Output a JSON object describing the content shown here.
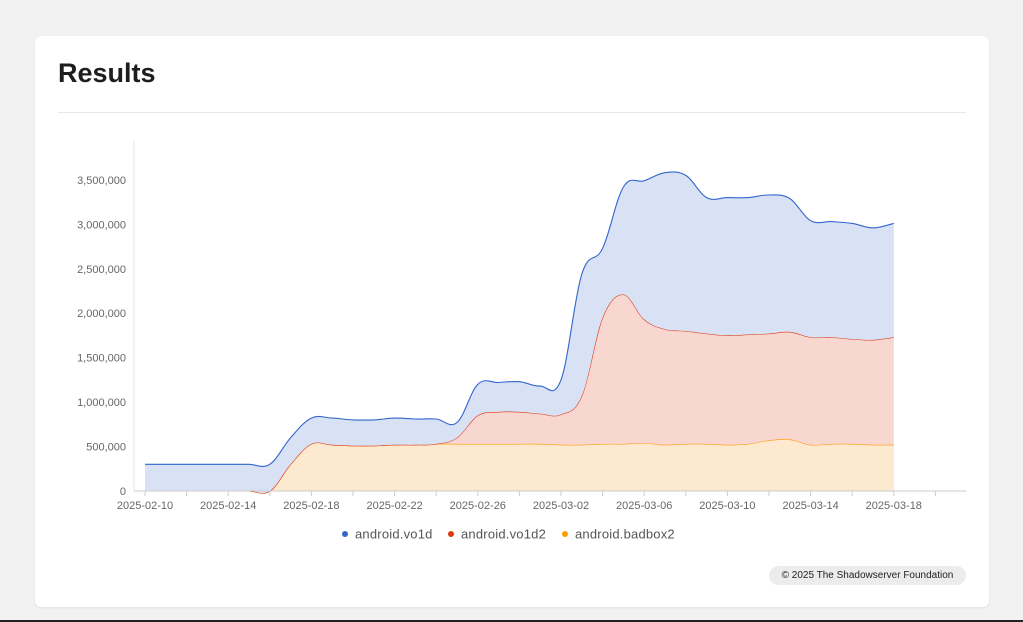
{
  "page": {
    "title": "Results",
    "credit": "© 2025 The Shadowserver Foundation"
  },
  "chart_data": {
    "type": "area",
    "title": "",
    "xlabel": "",
    "ylabel": "",
    "ylim": [
      0,
      3900000
    ],
    "yticks": [
      0,
      500000,
      1000000,
      1500000,
      2000000,
      2500000,
      3000000,
      3500000
    ],
    "ytick_labels": [
      "0",
      "500,000",
      "1,000,000",
      "1,500,000",
      "2,000,000",
      "2,500,000",
      "3,000,000",
      "3,500,000"
    ],
    "x": [
      "2025-02-10",
      "2025-02-11",
      "2025-02-12",
      "2025-02-13",
      "2025-02-14",
      "2025-02-15",
      "2025-02-16",
      "2025-02-17",
      "2025-02-18",
      "2025-02-19",
      "2025-02-20",
      "2025-02-21",
      "2025-02-22",
      "2025-02-23",
      "2025-02-24",
      "2025-02-25",
      "2025-02-26",
      "2025-02-27",
      "2025-02-28",
      "2025-03-01",
      "2025-03-02",
      "2025-03-03",
      "2025-03-04",
      "2025-03-05",
      "2025-03-06",
      "2025-03-07",
      "2025-03-08",
      "2025-03-09",
      "2025-03-10",
      "2025-03-11",
      "2025-03-12",
      "2025-03-13",
      "2025-03-14",
      "2025-03-15",
      "2025-03-16",
      "2025-03-17",
      "2025-03-18"
    ],
    "xtick_labels": [
      "2025-02-10",
      "2025-02-14",
      "2025-02-18",
      "2025-02-22",
      "2025-02-26",
      "2025-03-02",
      "2025-03-06",
      "2025-03-10",
      "2025-03-14",
      "2025-03-18"
    ],
    "xtick_label_indices": [
      0,
      4,
      8,
      12,
      16,
      20,
      24,
      28,
      32,
      36
    ],
    "x_axis_days": 40,
    "stacked": true,
    "grid": false,
    "legend_position": "bottom",
    "series": [
      {
        "name": "android.badbox2",
        "color": "#ff9900",
        "fill": "#fde8d0",
        "values": [
          0,
          0,
          0,
          0,
          0,
          0,
          0,
          300000,
          530000,
          520000,
          510000,
          510000,
          520000,
          520000,
          530000,
          530000,
          530000,
          530000,
          530000,
          530000,
          520000,
          520000,
          530000,
          530000,
          540000,
          520000,
          530000,
          530000,
          520000,
          530000,
          570000,
          580000,
          520000,
          530000,
          530000,
          520000,
          520000
        ]
      },
      {
        "name": "android.vo1d2",
        "color": "#dc3912",
        "fill": "#f8d7d0",
        "values": [
          0,
          0,
          0,
          0,
          0,
          0,
          0,
          0,
          0,
          0,
          0,
          0,
          0,
          0,
          0,
          70000,
          320000,
          360000,
          360000,
          340000,
          340000,
          550000,
          1420000,
          1680000,
          1390000,
          1300000,
          1270000,
          1240000,
          1230000,
          1230000,
          1200000,
          1210000,
          1210000,
          1200000,
          1180000,
          1180000,
          1210000
        ]
      },
      {
        "name": "android.vo1d",
        "color": "#3366cc",
        "fill": "#d9e1f5",
        "values": [
          300000,
          300000,
          300000,
          300000,
          300000,
          300000,
          300000,
          300000,
          290000,
          300000,
          290000,
          290000,
          300000,
          290000,
          280000,
          170000,
          350000,
          330000,
          340000,
          310000,
          390000,
          1370000,
          780000,
          1210000,
          1560000,
          1760000,
          1750000,
          1530000,
          1550000,
          1540000,
          1560000,
          1500000,
          1310000,
          1300000,
          1300000,
          1260000,
          1280000
        ]
      }
    ]
  }
}
